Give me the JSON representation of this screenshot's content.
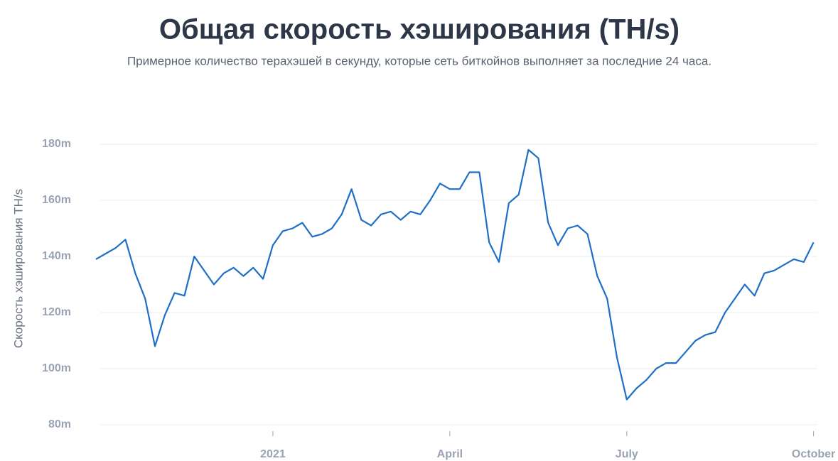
{
  "chart_data": {
    "type": "line",
    "title": "Общая скорость хэширования (TH/s)",
    "subtitle": "Примерное количество терахэшей в секунду, которые сеть биткойнов выполняет за последние 24 часа.",
    "y_label": "Скорость хэширования TH/s",
    "categories": [
      null,
      null,
      null,
      null,
      null,
      null,
      null,
      null,
      null,
      null,
      null,
      null,
      null,
      null,
      null,
      null,
      null,
      null,
      "2021",
      null,
      null,
      null,
      null,
      null,
      null,
      null,
      null,
      null,
      null,
      null,
      null,
      null,
      null,
      null,
      null,
      null,
      "April",
      null,
      null,
      null,
      null,
      null,
      null,
      null,
      null,
      null,
      null,
      null,
      null,
      null,
      null,
      null,
      null,
      null,
      "July",
      null,
      null,
      null,
      null,
      null,
      null,
      null,
      null,
      null,
      null,
      null,
      null,
      null,
      null,
      null,
      null,
      null,
      null,
      "October"
    ],
    "series": [
      {
        "name": "Скорость хэширования",
        "color": "#1f6fc6",
        "values": [
          139000000,
          141000000,
          143000000,
          146000000,
          134000000,
          125000000,
          108000000,
          119000000,
          127000000,
          126000000,
          140000000,
          135000000,
          130000000,
          134000000,
          136000000,
          133000000,
          136000000,
          132000000,
          144000000,
          149000000,
          150000000,
          152000000,
          147000000,
          148000000,
          150000000,
          155000000,
          164000000,
          153000000,
          151000000,
          155000000,
          156000000,
          153000000,
          156000000,
          155000000,
          160000000,
          166000000,
          164000000,
          164000000,
          170000000,
          170000000,
          145000000,
          138000000,
          159000000,
          162000000,
          178000000,
          175000000,
          152000000,
          144000000,
          150000000,
          151000000,
          148000000,
          133000000,
          125000000,
          104000000,
          89000000,
          93000000,
          96000000,
          100000000,
          102000000,
          102000000,
          106000000,
          110000000,
          112000000,
          113000000,
          120000000,
          125000000,
          130000000,
          126000000,
          134000000,
          135000000,
          137000000,
          139000000,
          138000000,
          145000000
        ]
      }
    ],
    "ylim": [
      80000000,
      190000000
    ],
    "yticks": [
      {
        "value": 80000000,
        "label": "80m"
      },
      {
        "value": 100000000,
        "label": "100m"
      },
      {
        "value": 120000000,
        "label": "120m"
      },
      {
        "value": 140000000,
        "label": "140m"
      },
      {
        "value": 160000000,
        "label": "160m"
      },
      {
        "value": 180000000,
        "label": "180m"
      }
    ],
    "grid": true
  }
}
